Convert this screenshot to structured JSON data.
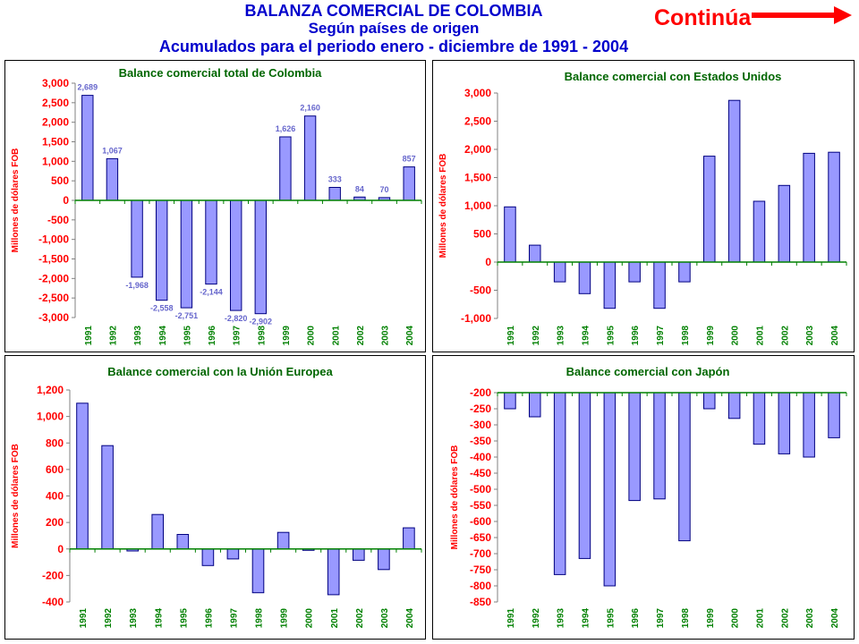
{
  "header": {
    "title": "BALANZA COMERCIAL DE COLOMBIA",
    "subtitle": "Según países de origen",
    "period": "Acumulados para el periodo enero - diciembre de 1991 - 2004",
    "continue_label": "Continúa"
  },
  "colors": {
    "title": "#0000cc",
    "chart_title": "#006600",
    "axis_red": "#ff0000",
    "bar_fill": "#9999ff",
    "bar_stroke": "#000080",
    "label_blue": "#6666cc",
    "year_green": "#008000",
    "arrow_red": "#ff0000"
  },
  "chart_data": [
    {
      "type": "bar",
      "title": "Balance comercial total de Colombia",
      "ylabel": "Millones de dólares FOB",
      "categories": [
        "1991",
        "1992",
        "1993",
        "1994",
        "1995",
        "1996",
        "1997",
        "1998",
        "1999",
        "2000",
        "2001",
        "2002",
        "2003",
        "2004"
      ],
      "values": [
        2689,
        1067,
        -1968,
        -2558,
        -2751,
        -2144,
        -2820,
        -2902,
        1626,
        2160,
        333,
        84,
        70,
        857
      ],
      "data_labels": [
        "2,689",
        "1,067",
        "-1,968",
        "-2,558",
        "-2,751",
        "-2,144",
        "-2,820",
        "-2,902",
        "1,626",
        "2,160",
        "333",
        "84",
        "70",
        "857"
      ],
      "ylim": [
        -3000,
        3000
      ],
      "yticks": [
        3000,
        2500,
        2000,
        1500,
        1000,
        500,
        0,
        -500,
        -1000,
        -1500,
        -2000,
        -2500,
        -3000
      ],
      "ytick_labels": [
        "3,000",
        "2,500",
        "2,000",
        "1,500",
        "1,000",
        "500",
        "0",
        "-500",
        "-1,000",
        "-1,500",
        "-2,000",
        "-2,500",
        "-3,000"
      ],
      "grid": false
    },
    {
      "type": "bar",
      "title": "Balance comercial con Estados Unidos",
      "ylabel": "Millones de dólares FOB",
      "categories": [
        "1991",
        "1992",
        "1993",
        "1994",
        "1995",
        "1996",
        "1997",
        "1998",
        "1999",
        "2000",
        "2001",
        "2002",
        "2003",
        "2004"
      ],
      "values": [
        980,
        300,
        -350,
        -560,
        -820,
        -350,
        -820,
        -350,
        1880,
        2870,
        1080,
        1360,
        1930,
        1950
      ],
      "ylim": [
        -1000,
        3000
      ],
      "yticks": [
        3000,
        2500,
        2000,
        1500,
        1000,
        500,
        0,
        -500,
        -1000
      ],
      "ytick_labels": [
        "3,000",
        "2,500",
        "2,000",
        "1,500",
        "1,000",
        "500",
        "0",
        "-500",
        "-1,000"
      ],
      "grid": false
    },
    {
      "type": "bar",
      "title": "Balance comercial con la Unión Europea",
      "ylabel": "Millones de dólares FOB",
      "categories": [
        "1991",
        "1992",
        "1993",
        "1994",
        "1995",
        "1996",
        "1997",
        "1998",
        "1999",
        "2000",
        "2001",
        "2002",
        "2003",
        "2004"
      ],
      "values": [
        1100,
        780,
        -15,
        260,
        110,
        -125,
        -75,
        -330,
        125,
        -10,
        -345,
        -85,
        -155,
        160
      ],
      "ylim": [
        -400,
        1200
      ],
      "yticks": [
        1200,
        1000,
        800,
        600,
        400,
        200,
        0,
        -200,
        -400
      ],
      "ytick_labels": [
        "1,200",
        "1,000",
        "800",
        "600",
        "400",
        "200",
        "0",
        "-200",
        "-400"
      ],
      "grid": false
    },
    {
      "type": "bar",
      "title": "Balance comercial con Japón",
      "ylabel": "Millones de dólares FOB",
      "categories": [
        "1991",
        "1992",
        "1993",
        "1994",
        "1995",
        "1996",
        "1997",
        "1998",
        "1999",
        "2000",
        "2001",
        "2002",
        "2003",
        "2004"
      ],
      "values": [
        -250,
        -275,
        -765,
        -715,
        -800,
        -535,
        -530,
        -660,
        -250,
        -280,
        -360,
        -390,
        -400,
        -340
      ],
      "ylim": [
        -850,
        -200
      ],
      "yticks": [
        -200,
        -250,
        -300,
        -350,
        -400,
        -450,
        -500,
        -550,
        -600,
        -650,
        -700,
        -750,
        -800,
        -850
      ],
      "ytick_labels": [
        "-200",
        "-250",
        "-300",
        "-350",
        "-400",
        "-450",
        "-500",
        "-550",
        "-600",
        "-650",
        "-700",
        "-750",
        "-800",
        "-850"
      ],
      "grid": false
    }
  ]
}
